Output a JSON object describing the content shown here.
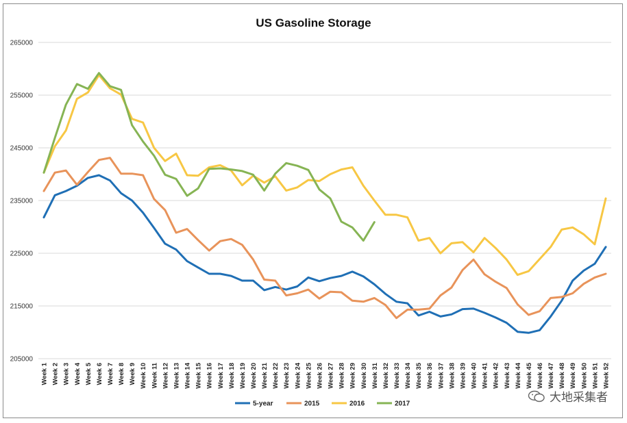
{
  "chart_data": {
    "type": "line",
    "title": "US Gasoline Storage",
    "xlabel": "",
    "ylabel": "",
    "ylim": [
      205000,
      265000
    ],
    "yticks": [
      205000,
      215000,
      225000,
      235000,
      245000,
      255000,
      265000
    ],
    "ytick_labels": [
      "205000",
      "215000",
      "225000",
      "235000",
      "245000",
      "255000",
      "265000"
    ],
    "grid": true,
    "legend_position": "bottom",
    "categories": [
      "Week 1",
      "Week 2",
      "Week 3",
      "Week 4",
      "Week 5",
      "Week 6",
      "Week 7",
      "Week 8",
      "Week 9",
      "Week 10",
      "Week 11",
      "Week 12",
      "Week 13",
      "Week 14",
      "Week 15",
      "Week 16",
      "Week 17",
      "Week 18",
      "Week 19",
      "Week 20",
      "Week 21",
      "Week 22",
      "Week 23",
      "Week 24",
      "Week 25",
      "Week 26",
      "Week 27",
      "Week 28",
      "Week 29",
      "Week 30",
      "Week 31",
      "Week 32",
      "Week 33",
      "Week 34",
      "Week 35",
      "Week 36",
      "Week 37",
      "Week 38",
      "Week 39",
      "Week 40",
      "Week 41",
      "Week 42",
      "Week 43",
      "Week 44",
      "Week 45",
      "Week 46",
      "Week 47",
      "Week 48",
      "Week 49",
      "Week 50",
      "Week 51",
      "Week 52"
    ],
    "series": [
      {
        "name": "5-year",
        "color": "#1f6fb5",
        "values": [
          231800,
          236000,
          236800,
          237800,
          239300,
          239800,
          238800,
          236400,
          235000,
          232700,
          229800,
          226800,
          225700,
          223500,
          222300,
          221100,
          221100,
          220700,
          219800,
          219800,
          218000,
          218600,
          218100,
          218700,
          220400,
          219700,
          220300,
          220700,
          221500,
          220600,
          219100,
          217300,
          215800,
          215500,
          213200,
          213900,
          213000,
          213400,
          214400,
          214500,
          213700,
          212800,
          211800,
          210100,
          209900,
          210400,
          213000,
          216000,
          219800,
          221700,
          223000,
          226200
        ]
      },
      {
        "name": "2015",
        "color": "#e8935a",
        "values": [
          236800,
          240300,
          240700,
          238000,
          240400,
          242700,
          243100,
          240100,
          240100,
          239800,
          235300,
          233200,
          228900,
          229600,
          227500,
          225500,
          227300,
          227700,
          226600,
          223800,
          220000,
          219800,
          217000,
          217400,
          218100,
          216400,
          217700,
          217600,
          216000,
          215800,
          216500,
          215200,
          212700,
          214300,
          214300,
          214500,
          217000,
          218500,
          221800,
          223800,
          221000,
          219600,
          218400,
          215300,
          213300,
          214000,
          216500,
          216700,
          217400,
          219200,
          220400,
          221100
        ]
      },
      {
        "name": "2016",
        "color": "#f7c744",
        "values": [
          240300,
          245300,
          248300,
          254300,
          255500,
          258800,
          256300,
          255100,
          250500,
          249800,
          245000,
          242500,
          243900,
          239800,
          239700,
          241300,
          241700,
          240700,
          237900,
          239700,
          238400,
          239600,
          236900,
          237500,
          238900,
          238700,
          240000,
          240900,
          241300,
          237800,
          235000,
          232300,
          232300,
          231800,
          227400,
          227900,
          225000,
          226900,
          227100,
          225200,
          227900,
          226000,
          223800,
          220900,
          221600,
          223900,
          226200,
          229500,
          229900,
          228600,
          226700,
          235400
        ]
      },
      {
        "name": "2017",
        "color": "#86b454",
        "values": [
          240300,
          246900,
          253200,
          257100,
          256200,
          259200,
          256700,
          256000,
          249300,
          246200,
          243500,
          239900,
          239100,
          235900,
          237300,
          241000,
          241100,
          240900,
          240600,
          239900,
          236900,
          240100,
          242100,
          241600,
          240800,
          237100,
          235400,
          231000,
          229900,
          227400,
          230900,
          null,
          null,
          null,
          null,
          null,
          null,
          null,
          null,
          null,
          null,
          null,
          null,
          null,
          null,
          null,
          null,
          null,
          null,
          null,
          null,
          null
        ]
      }
    ]
  },
  "watermark": {
    "text": "大地采集者",
    "icon": "wechat-icon"
  }
}
